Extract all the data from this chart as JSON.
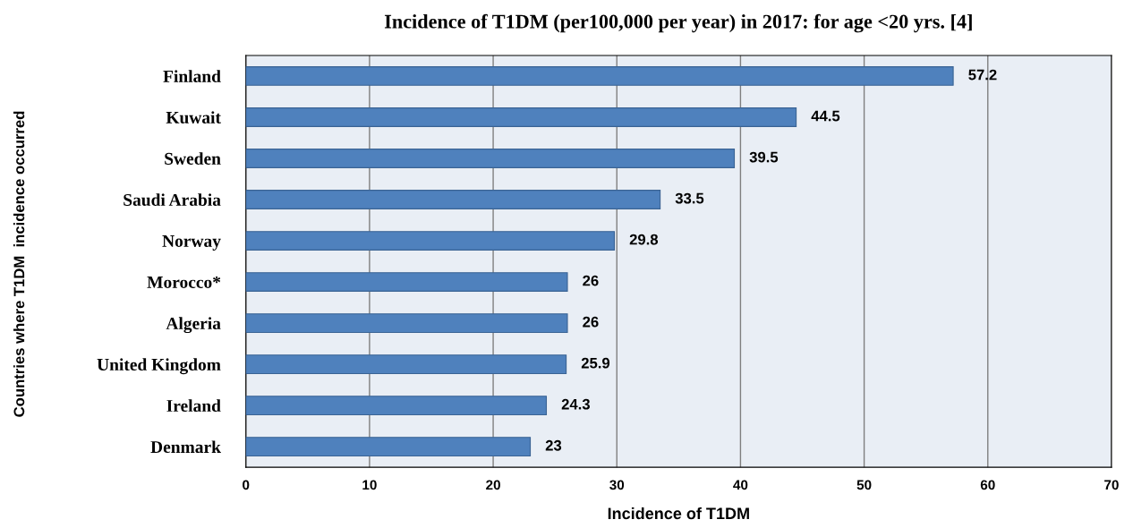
{
  "chart_data": {
    "type": "bar",
    "orientation": "horizontal",
    "title": "Incidence of T1DM (per100,000 per year) in 2017: for age <20 yrs. [4]",
    "xlabel": "Incidence of T1DM",
    "ylabel": "Countries where T1DM  incidence occurred",
    "categories": [
      "Finland",
      "Kuwait",
      "Sweden",
      "Saudi Arabia",
      "Norway",
      "Morocco*",
      "Algeria",
      "United Kingdom",
      "Ireland",
      "Denmark"
    ],
    "values": [
      57.2,
      44.5,
      39.5,
      33.5,
      29.8,
      26,
      26,
      25.9,
      24.3,
      23
    ],
    "color": "#4f81bd",
    "data_labels": true,
    "xlim": [
      0,
      70
    ],
    "xticks": [
      0,
      10,
      20,
      30,
      40,
      50,
      60,
      70
    ],
    "grid": "x",
    "legend": false
  }
}
